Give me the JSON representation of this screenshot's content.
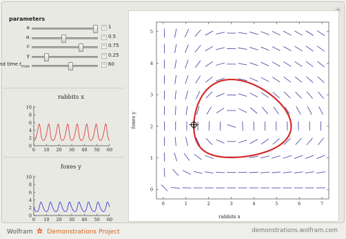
{
  "window": {
    "plus_icon": "+"
  },
  "controls": {
    "title": "parameters",
    "sliders": [
      {
        "label": "a",
        "value": "1",
        "fraction": 0.95
      },
      {
        "label": "α",
        "value": "0.5",
        "fraction": 0.47
      },
      {
        "label": "c",
        "value": "0.75",
        "fraction": 0.73
      },
      {
        "label": "γ",
        "value": "0.25",
        "fraction": 0.21
      },
      {
        "label": "end time t",
        "label_sub": "max",
        "value": "60",
        "fraction": 0.57
      }
    ],
    "plus_symbol": "+"
  },
  "rabbits_plot": {
    "title": "rabbits x",
    "y_ticks": [
      "10",
      "8",
      "6",
      "4",
      "2",
      "0"
    ],
    "x_ticks": [
      "0",
      "10",
      "20",
      "30",
      "40",
      "50",
      "60"
    ],
    "color": "#e03b3b"
  },
  "foxes_plot": {
    "title": "foxes y",
    "y_ticks": [
      "10",
      "8",
      "6",
      "4",
      "2",
      "0"
    ],
    "x_ticks": [
      "0",
      "10",
      "20",
      "30",
      "40",
      "50",
      "60"
    ],
    "color": "#3a3ad8"
  },
  "phase_plot": {
    "xlabel": "rabbits x",
    "ylabel": "foxes y",
    "x_ticks": [
      "0",
      "1",
      "2",
      "3",
      "4",
      "5",
      "6",
      "7"
    ],
    "y_ticks": [
      "0",
      "1",
      "2",
      "3",
      "4",
      "5"
    ],
    "orbit_color": "#d42a2a",
    "field_color": "#4b4fa8",
    "initial_point": {
      "x": 1.35,
      "y": 2.05
    }
  },
  "footer": {
    "left_prefix": "Wolfram",
    "left_brand": "Demonstrations Project",
    "right": "demonstrations.wolfram.com"
  }
}
